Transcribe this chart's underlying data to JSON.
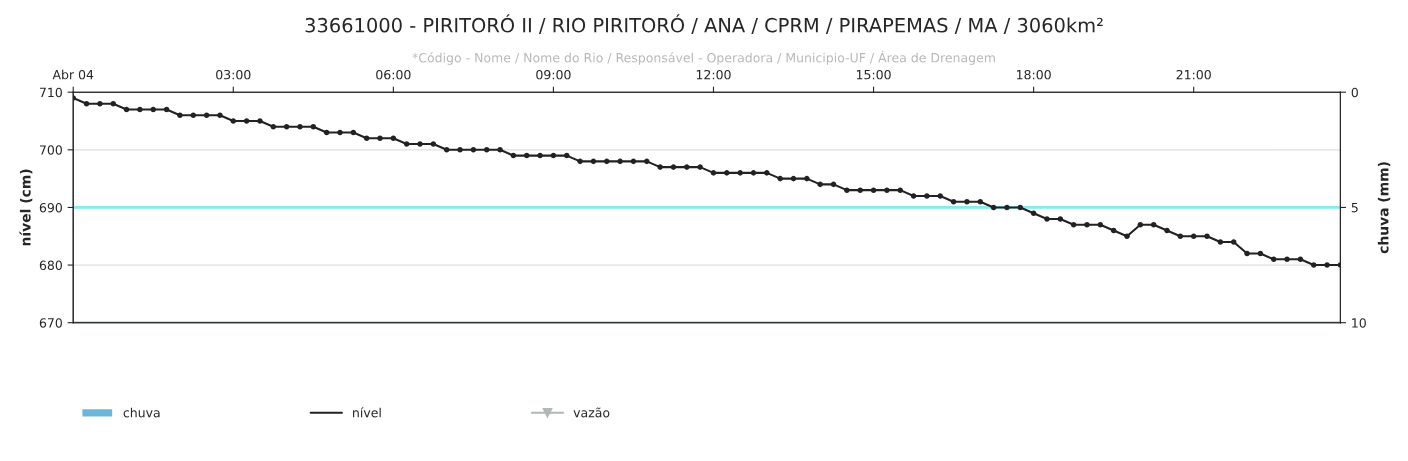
{
  "chart_data": {
    "type": "line",
    "title": "33661000 - PIRITORÓ II / RIO PIRITORÓ / ANA / CPRM / PIRAPEMAS / MA / 3060km²",
    "subtitle": "*Código - Nome / Nome do Rio / Responsável - Operadora / Municipio-UF / Área de Drenagem",
    "ylabel": "nível (cm)",
    "y2label": "chuva (mm)",
    "x": [
      0,
      0.25,
      0.5,
      0.75,
      1,
      1.25,
      1.5,
      1.75,
      2,
      2.25,
      2.5,
      2.75,
      3,
      3.25,
      3.5,
      3.75,
      4,
      4.25,
      4.5,
      4.75,
      5,
      5.25,
      5.5,
      5.75,
      6,
      6.25,
      6.5,
      6.75,
      7,
      7.25,
      7.5,
      7.75,
      8,
      8.25,
      8.5,
      8.75,
      9,
      9.25,
      9.5,
      9.75,
      10,
      10.25,
      10.5,
      10.75,
      11,
      11.25,
      11.5,
      11.75,
      12,
      12.25,
      12.5,
      12.75,
      13,
      13.25,
      13.5,
      13.75,
      14,
      14.25,
      14.5,
      14.75,
      15,
      15.25,
      15.5,
      15.75,
      16,
      16.25,
      16.5,
      16.75,
      17,
      17.25,
      17.5,
      17.75,
      18,
      18.25,
      18.5,
      18.75,
      19,
      19.25,
      19.5,
      19.75,
      20,
      20.25,
      20.5,
      20.75,
      21,
      21.25,
      21.5,
      21.75,
      22,
      22.25,
      22.5,
      22.75,
      23,
      23.25,
      23.5,
      23.75
    ],
    "series": [
      {
        "name": "chuva",
        "type": "bar",
        "color": "#6bb7db",
        "values": [
          null,
          null,
          null,
          null,
          null,
          null,
          null,
          null,
          null,
          null,
          null,
          null,
          null,
          null,
          null,
          null,
          null,
          null,
          null,
          null,
          null,
          null,
          null,
          null,
          null,
          null,
          null,
          null,
          null,
          null,
          null,
          null,
          null,
          null,
          null,
          null,
          null,
          null,
          null,
          null,
          null,
          null,
          null,
          null,
          null,
          null,
          null,
          null,
          null,
          null,
          null,
          null,
          null,
          null,
          null,
          null,
          null,
          null,
          null,
          null,
          null,
          null,
          null,
          null,
          null,
          null,
          null,
          null,
          null,
          null,
          null,
          null,
          null,
          null,
          null,
          null,
          null,
          null,
          null,
          null,
          null,
          null,
          null,
          null,
          null,
          null,
          null,
          null,
          null,
          null,
          null,
          null,
          null,
          null,
          null,
          null
        ]
      },
      {
        "name": "nível",
        "color": "#222222",
        "marker": "circle",
        "values": [
          709,
          708,
          708,
          708,
          707,
          707,
          707,
          707,
          706,
          706,
          706,
          706,
          705,
          705,
          705,
          704,
          704,
          704,
          704,
          703,
          703,
          703,
          702,
          702,
          702,
          701,
          701,
          701,
          700,
          700,
          700,
          700,
          700,
          699,
          699,
          699,
          699,
          699,
          698,
          698,
          698,
          698,
          698,
          698,
          697,
          697,
          697,
          697,
          696,
          696,
          696,
          696,
          696,
          695,
          695,
          695,
          694,
          694,
          693,
          693,
          693,
          693,
          693,
          692,
          692,
          692,
          691,
          691,
          691,
          690,
          690,
          690,
          689,
          688,
          688,
          687,
          687,
          687,
          686,
          685,
          687,
          687,
          686,
          685,
          685,
          685,
          684,
          684,
          682,
          682,
          681,
          681,
          681,
          680,
          680,
          680
        ]
      },
      {
        "name": "vazão",
        "color": "#b0b8b8",
        "marker": "triangle",
        "values": [
          null,
          null,
          null,
          null,
          null,
          null,
          null,
          null,
          null,
          null,
          null,
          null,
          null,
          null,
          null,
          null,
          null,
          null,
          null,
          null,
          null,
          null,
          null,
          null,
          null,
          null,
          null,
          null,
          null,
          null,
          null,
          null,
          null,
          null,
          null,
          null,
          null,
          null,
          null,
          null,
          null,
          null,
          null,
          null,
          null,
          null,
          null,
          null,
          null,
          null,
          null,
          null,
          null,
          null,
          null,
          null,
          null,
          null,
          null,
          null,
          null,
          null,
          null,
          null,
          null,
          null,
          null,
          null,
          null,
          null,
          null,
          null,
          null,
          null,
          null,
          null,
          null,
          null,
          null,
          null,
          null,
          null,
          null,
          null,
          null,
          null,
          null,
          null,
          null,
          null,
          null,
          null,
          null,
          null,
          null,
          null
        ]
      }
    ],
    "xlim": [
      0,
      23.75
    ],
    "xticks": [
      {
        "value": 0,
        "label": "Abr 04"
      },
      {
        "value": 3,
        "label": "03:00"
      },
      {
        "value": 6,
        "label": "06:00"
      },
      {
        "value": 9,
        "label": "09:00"
      },
      {
        "value": 12,
        "label": "12:00"
      },
      {
        "value": 15,
        "label": "15:00"
      },
      {
        "value": 18,
        "label": "18:00"
      },
      {
        "value": 21,
        "label": "21:00"
      }
    ],
    "ylim": [
      670,
      710
    ],
    "yticks": [
      670,
      680,
      690,
      700,
      710
    ],
    "y2lim": [
      10,
      0
    ],
    "y2ticks": [
      0,
      5,
      10
    ],
    "ref_lines": [
      {
        "axis": "y",
        "value": 690,
        "color": "#80eeee"
      },
      {
        "axis": "y",
        "value": 670,
        "color": "#80eeee"
      }
    ],
    "grid": "y",
    "legend": "bottom"
  }
}
